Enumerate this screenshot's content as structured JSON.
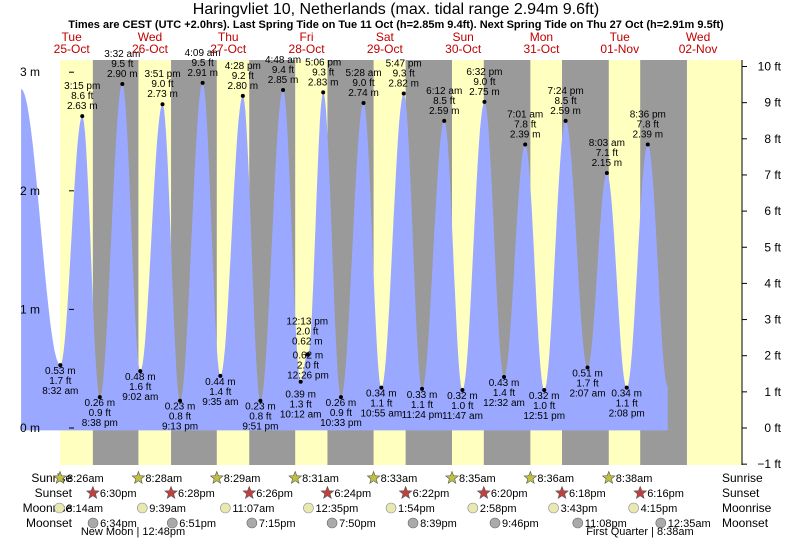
{
  "chart_data": {
    "type": "area",
    "title": "Haringvliet 10, Netherlands (max. tidal range 2.94m 9.6ft)",
    "subtitle": "Times are CEST (UTC +2.0hrs). Last Spring Tide on Tue 11 Oct (h=2.85m 9.4ft). Next Spring Tide on Thu 27 Oct (h=2.91m 9.5ft)",
    "days": [
      {
        "dow": "Tue",
        "date": "25-Oct"
      },
      {
        "dow": "Wed",
        "date": "26-Oct"
      },
      {
        "dow": "Thu",
        "date": "27-Oct"
      },
      {
        "dow": "Fri",
        "date": "28-Oct"
      },
      {
        "dow": "Sat",
        "date": "29-Oct"
      },
      {
        "dow": "Sun",
        "date": "30-Oct"
      },
      {
        "dow": "Mon",
        "date": "31-Oct"
      },
      {
        "dow": "Tue",
        "date": "01-Nov"
      },
      {
        "dow": "Wed",
        "date": "02-Nov"
      }
    ],
    "y_left": {
      "unit": "m",
      "range": [
        -0.3,
        3.25
      ],
      "ticks": [
        "0 m",
        "1 m",
        "2 m",
        "3 m"
      ]
    },
    "y_right": {
      "unit": "ft",
      "ticks": [
        "−1 ft",
        "0 ft",
        "1 ft",
        "2 ft",
        "3 ft",
        "4 ft",
        "5 ft",
        "6 ft",
        "7 ft",
        "8 ft",
        "9 ft",
        "10 ft"
      ]
    },
    "tides": [
      {
        "day": 0,
        "hour": 8.53,
        "type": "low",
        "time": "8:32 am",
        "ft": "1.7 ft",
        "m": 0.53,
        "m_label": "0.53 m"
      },
      {
        "day": 0,
        "hour": 15.25,
        "type": "high",
        "time": "3:15 pm",
        "ft": "8.6 ft",
        "m": 2.63,
        "m_label": "2.63 m"
      },
      {
        "day": 0,
        "hour": 20.63,
        "type": "low",
        "time": "8:38 pm",
        "ft": "0.9 ft",
        "m": 0.26,
        "m_label": "0.26 m"
      },
      {
        "day": 1,
        "hour": 3.53,
        "type": "high",
        "time": "3:32 am",
        "ft": "9.5 ft",
        "m": 2.9,
        "m_label": "2.90 m"
      },
      {
        "day": 1,
        "hour": 9.03,
        "type": "low",
        "time": "9:02 am",
        "ft": "1.6 ft",
        "m": 0.48,
        "m_label": "0.48 m"
      },
      {
        "day": 1,
        "hour": 15.85,
        "type": "high",
        "time": "3:51 pm",
        "ft": "9.0 ft",
        "m": 2.73,
        "m_label": "2.73 m"
      },
      {
        "day": 1,
        "hour": 21.22,
        "type": "low",
        "time": "9:13 pm",
        "ft": "0.8 ft",
        "m": 0.23,
        "m_label": "0.23 m"
      },
      {
        "day": 2,
        "hour": 4.15,
        "type": "high",
        "time": "4:09 am",
        "ft": "9.5 ft",
        "m": 2.91,
        "m_label": "2.91 m"
      },
      {
        "day": 2,
        "hour": 9.58,
        "type": "low",
        "time": "9:35 am",
        "ft": "1.4 ft",
        "m": 0.44,
        "m_label": "0.44 m"
      },
      {
        "day": 2,
        "hour": 16.47,
        "type": "high",
        "time": "4:28 pm",
        "ft": "9.2 ft",
        "m": 2.8,
        "m_label": "2.80 m"
      },
      {
        "day": 2,
        "hour": 21.85,
        "type": "low",
        "time": "9:51 pm",
        "ft": "0.8 ft",
        "m": 0.23,
        "m_label": "0.23 m"
      },
      {
        "day": 3,
        "hour": 4.8,
        "type": "high",
        "time": "4:48 am",
        "ft": "9.4 ft",
        "m": 2.85,
        "m_label": "2.85 m"
      },
      {
        "day": 3,
        "hour": 10.2,
        "type": "low",
        "time": "10:12 am",
        "ft": "1.3 ft",
        "m": 0.39,
        "m_label": "0.39 m"
      },
      {
        "day": 3,
        "hour": 12.22,
        "type": "high",
        "time": "12:13 pm",
        "ft": "2.0 ft",
        "m": 0.62,
        "m_label": "0.62 m"
      },
      {
        "day": 3,
        "hour": 12.43,
        "type": "low",
        "time": "12:26 pm",
        "ft": "2.0 ft",
        "m": 0.62,
        "m_label": "0.62 m"
      },
      {
        "day": 3,
        "hour": 17.1,
        "type": "high",
        "time": "5:06 pm",
        "ft": "9.3 ft",
        "m": 2.83,
        "m_label": "2.83 m"
      },
      {
        "day": 3,
        "hour": 22.55,
        "type": "low",
        "time": "10:33 pm",
        "ft": "0.9 ft",
        "m": 0.26,
        "m_label": "0.26 m"
      },
      {
        "day": 4,
        "hour": 5.47,
        "type": "high",
        "time": "5:28 am",
        "ft": "9.0 ft",
        "m": 2.74,
        "m_label": "2.74 m"
      },
      {
        "day": 4,
        "hour": 10.92,
        "type": "low",
        "time": "10:55 am",
        "ft": "1.1 ft",
        "m": 0.34,
        "m_label": "0.34 m"
      },
      {
        "day": 4,
        "hour": 17.78,
        "type": "high",
        "time": "5:47 pm",
        "ft": "9.3 ft",
        "m": 2.82,
        "m_label": "2.82 m"
      },
      {
        "day": 4,
        "hour": 23.4,
        "type": "low",
        "time": "11:24 pm",
        "ft": "1.1 ft",
        "m": 0.33,
        "m_label": "0.33 m"
      },
      {
        "day": 5,
        "hour": 6.2,
        "type": "high",
        "time": "6:12 am",
        "ft": "8.5 ft",
        "m": 2.59,
        "m_label": "2.59 m"
      },
      {
        "day": 5,
        "hour": 11.78,
        "type": "low",
        "time": "11:47 am",
        "ft": "1.0 ft",
        "m": 0.32,
        "m_label": "0.32 m"
      },
      {
        "day": 5,
        "hour": 18.53,
        "type": "high",
        "time": "6:32 pm",
        "ft": "9.0 ft",
        "m": 2.75,
        "m_label": "2.75 m"
      },
      {
        "day": 6,
        "hour": 0.53,
        "type": "low",
        "time": "12:32 am",
        "ft": "1.4 ft",
        "m": 0.43,
        "m_label": "0.43 m"
      },
      {
        "day": 6,
        "hour": 7.02,
        "type": "high",
        "time": "7:01 am",
        "ft": "7.8 ft",
        "m": 2.39,
        "m_label": "2.39 m"
      },
      {
        "day": 6,
        "hour": 12.85,
        "type": "low",
        "time": "12:51 pm",
        "ft": "1.0 ft",
        "m": 0.32,
        "m_label": "0.32 m"
      },
      {
        "day": 6,
        "hour": 19.4,
        "type": "high",
        "time": "7:24 pm",
        "ft": "8.5 ft",
        "m": 2.59,
        "m_label": "2.59 m"
      },
      {
        "day": 7,
        "hour": 2.12,
        "type": "low",
        "time": "2:07 am",
        "ft": "1.7 ft",
        "m": 0.51,
        "m_label": "0.51 m"
      },
      {
        "day": 7,
        "hour": 8.05,
        "type": "high",
        "time": "8:03 am",
        "ft": "7.1 ft",
        "m": 2.15,
        "m_label": "2.15 m"
      },
      {
        "day": 7,
        "hour": 14.13,
        "type": "low",
        "time": "2:08 pm",
        "ft": "1.1 ft",
        "m": 0.34,
        "m_label": "0.34 m"
      },
      {
        "day": 7,
        "hour": 20.6,
        "type": "high",
        "time": "8:36 pm",
        "ft": "7.8 ft",
        "m": 2.39,
        "m_label": "2.39 m"
      }
    ],
    "sunrise": [
      "8:26am",
      "8:28am",
      "8:29am",
      "8:31am",
      "8:33am",
      "8:35am",
      "8:36am",
      "8:38am"
    ],
    "sunset": [
      "6:30pm",
      "6:28pm",
      "6:26pm",
      "6:24pm",
      "6:22pm",
      "6:20pm",
      "6:18pm",
      "6:16pm"
    ],
    "moonrise": [
      "8:14am",
      "9:39am",
      "11:07am",
      "12:35pm",
      "1:54pm",
      "2:58pm",
      "3:43pm",
      "4:15pm"
    ],
    "moonset": [
      "6:34pm",
      "6:51pm",
      "7:15pm",
      "7:50pm",
      "8:39pm",
      "9:46pm",
      "11:08pm",
      "12:35am"
    ],
    "row_labels": {
      "sunrise": "Sunrise",
      "sunset": "Sunset",
      "moonrise": "Moonrise",
      "moonset": "Moonset"
    },
    "moon_phases": [
      {
        "day": 0,
        "label": "New Moon",
        "time": "12:48pm"
      },
      {
        "day": 6,
        "label": "First Quarter",
        "time": "8:38am"
      }
    ],
    "colors": {
      "water": "#9aa9ff",
      "night": "#9a9a9a",
      "day": "#ffffc0",
      "sun_star": "#c0c040",
      "sunset_star": "#c04040",
      "moon": "#e8e8b0"
    }
  }
}
